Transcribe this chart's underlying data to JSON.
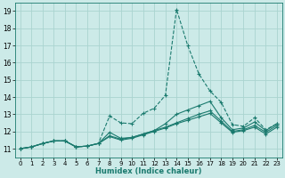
{
  "xlabel": "Humidex (Indice chaleur)",
  "xlim": [
    -0.5,
    23.5
  ],
  "ylim": [
    10.5,
    19.5
  ],
  "yticks": [
    11,
    12,
    13,
    14,
    15,
    16,
    17,
    18,
    19
  ],
  "xticks": [
    0,
    1,
    2,
    3,
    4,
    5,
    6,
    7,
    8,
    9,
    10,
    11,
    12,
    13,
    14,
    15,
    16,
    17,
    18,
    19,
    20,
    21,
    22,
    23
  ],
  "background_color": "#cceae8",
  "grid_color": "#aad4d0",
  "line_color": "#1a7a6e",
  "line_width": 0.8,
  "marker": "+",
  "marker_size": 3,
  "curves": [
    [
      11.0,
      11.1,
      11.3,
      11.45,
      11.45,
      11.1,
      11.15,
      11.3,
      12.9,
      12.5,
      12.45,
      13.05,
      13.35,
      14.1,
      19.1,
      17.0,
      15.35,
      14.35,
      13.7,
      12.4,
      12.3,
      12.8,
      12.1,
      12.45
    ],
    [
      11.0,
      11.1,
      11.3,
      11.45,
      11.45,
      11.1,
      11.15,
      11.3,
      11.95,
      11.6,
      11.65,
      11.85,
      12.05,
      12.45,
      13.0,
      13.25,
      13.5,
      13.75,
      12.8,
      12.1,
      12.2,
      12.55,
      12.05,
      12.45
    ],
    [
      11.0,
      11.1,
      11.3,
      11.45,
      11.45,
      11.1,
      11.15,
      11.3,
      11.75,
      11.55,
      11.65,
      11.85,
      12.05,
      12.25,
      12.5,
      12.75,
      13.0,
      13.2,
      12.6,
      12.0,
      12.1,
      12.35,
      11.95,
      12.35
    ],
    [
      11.0,
      11.1,
      11.3,
      11.45,
      11.45,
      11.1,
      11.15,
      11.3,
      11.7,
      11.5,
      11.6,
      11.8,
      12.0,
      12.2,
      12.45,
      12.65,
      12.85,
      13.05,
      12.5,
      11.95,
      12.05,
      12.25,
      11.85,
      12.25
    ]
  ]
}
